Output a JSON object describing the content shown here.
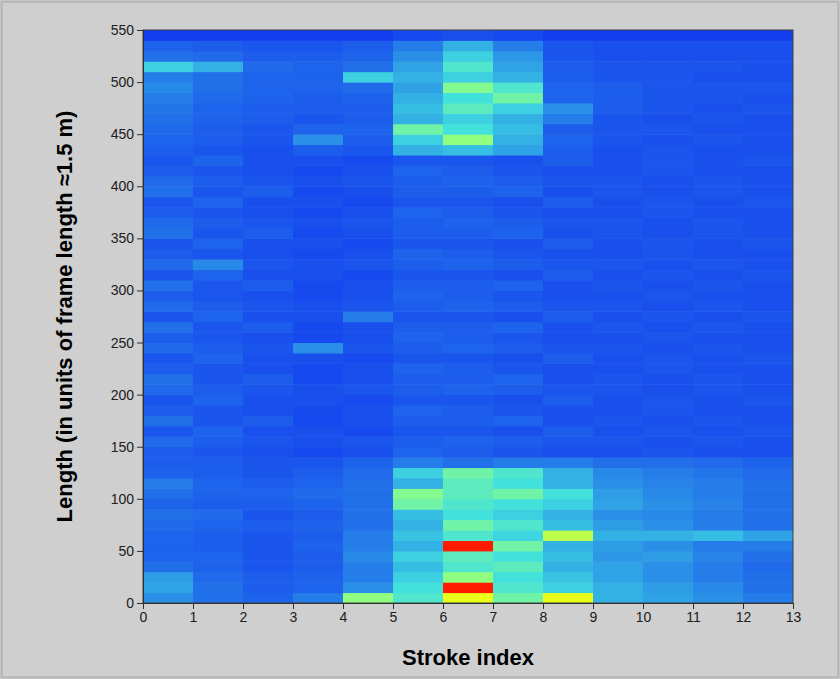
{
  "chart_data": {
    "type": "heatmap",
    "xlabel": "Stroke index",
    "ylabel": "Length (in units of frame length ≈1.5 m)",
    "xlim": [
      0,
      13
    ],
    "ylim": [
      0,
      550
    ],
    "xticks": [
      0,
      1,
      2,
      3,
      4,
      5,
      6,
      7,
      8,
      9,
      10,
      11,
      12,
      13
    ],
    "yticks": [
      0,
      50,
      100,
      150,
      200,
      250,
      300,
      350,
      400,
      450,
      500,
      550
    ],
    "x_edges": [
      0,
      1,
      2,
      3,
      4,
      5,
      6,
      7,
      8,
      9,
      10,
      11,
      12,
      13
    ],
    "y_edges": [
      0,
      10,
      20,
      30,
      40,
      50,
      60,
      70,
      80,
      90,
      100,
      110,
      120,
      130,
      140,
      150,
      160,
      170,
      180,
      190,
      200,
      210,
      220,
      230,
      240,
      250,
      260,
      270,
      280,
      290,
      300,
      310,
      320,
      330,
      340,
      350,
      360,
      370,
      380,
      390,
      400,
      410,
      420,
      430,
      440,
      450,
      460,
      470,
      480,
      490,
      500,
      510,
      520,
      530,
      540,
      550
    ],
    "zlim": [
      0,
      1
    ],
    "z": [
      [
        0.25,
        0.2,
        0.18,
        0.22,
        0.5,
        0.4,
        0.6,
        0.45,
        0.6,
        0.3,
        0.28,
        0.25,
        0.22
      ],
      [
        0.28,
        0.2,
        0.17,
        0.18,
        0.25,
        0.38,
        0.85,
        0.4,
        0.35,
        0.3,
        0.27,
        0.24,
        0.2
      ],
      [
        0.27,
        0.19,
        0.17,
        0.18,
        0.22,
        0.35,
        0.5,
        0.38,
        0.33,
        0.28,
        0.25,
        0.22,
        0.2
      ],
      [
        0.2,
        0.18,
        0.16,
        0.17,
        0.22,
        0.32,
        0.4,
        0.42,
        0.3,
        0.28,
        0.25,
        0.22,
        0.19
      ],
      [
        0.18,
        0.18,
        0.16,
        0.17,
        0.24,
        0.35,
        0.42,
        0.38,
        0.32,
        0.26,
        0.27,
        0.23,
        0.2
      ],
      [
        0.18,
        0.17,
        0.16,
        0.18,
        0.22,
        0.3,
        0.85,
        0.45,
        0.3,
        0.27,
        0.25,
        0.22,
        0.22
      ],
      [
        0.18,
        0.17,
        0.16,
        0.17,
        0.22,
        0.33,
        0.4,
        0.36,
        0.55,
        0.3,
        0.3,
        0.32,
        0.28
      ],
      [
        0.19,
        0.18,
        0.17,
        0.18,
        0.2,
        0.3,
        0.45,
        0.4,
        0.32,
        0.27,
        0.25,
        0.22,
        0.2
      ],
      [
        0.2,
        0.19,
        0.16,
        0.17,
        0.2,
        0.32,
        0.38,
        0.35,
        0.3,
        0.25,
        0.24,
        0.22,
        0.2
      ],
      [
        0.18,
        0.17,
        0.17,
        0.18,
        0.2,
        0.45,
        0.4,
        0.38,
        0.35,
        0.28,
        0.25,
        0.23,
        0.2
      ],
      [
        0.2,
        0.18,
        0.18,
        0.19,
        0.2,
        0.48,
        0.42,
        0.45,
        0.38,
        0.27,
        0.24,
        0.22,
        0.2
      ],
      [
        0.22,
        0.18,
        0.17,
        0.18,
        0.2,
        0.3,
        0.42,
        0.38,
        0.3,
        0.25,
        0.23,
        0.22,
        0.2
      ],
      [
        0.18,
        0.17,
        0.16,
        0.17,
        0.19,
        0.35,
        0.45,
        0.4,
        0.3,
        0.24,
        0.22,
        0.21,
        0.19
      ],
      [
        0.17,
        0.17,
        0.16,
        0.16,
        0.18,
        0.22,
        0.2,
        0.22,
        0.22,
        0.2,
        0.2,
        0.19,
        0.18
      ],
      [
        0.17,
        0.16,
        0.15,
        0.14,
        0.15,
        0.18,
        0.17,
        0.16,
        0.15,
        0.15,
        0.16,
        0.15,
        0.15
      ],
      [
        0.19,
        0.17,
        0.16,
        0.15,
        0.16,
        0.17,
        0.18,
        0.17,
        0.16,
        0.16,
        0.15,
        0.16,
        0.15
      ],
      [
        0.16,
        0.18,
        0.15,
        0.15,
        0.14,
        0.16,
        0.16,
        0.15,
        0.17,
        0.15,
        0.16,
        0.15,
        0.16
      ],
      [
        0.2,
        0.16,
        0.17,
        0.14,
        0.15,
        0.17,
        0.17,
        0.18,
        0.15,
        0.16,
        0.15,
        0.16,
        0.15
      ],
      [
        0.17,
        0.16,
        0.15,
        0.14,
        0.15,
        0.18,
        0.17,
        0.16,
        0.15,
        0.15,
        0.16,
        0.15,
        0.15
      ],
      [
        0.16,
        0.18,
        0.15,
        0.15,
        0.14,
        0.16,
        0.16,
        0.15,
        0.17,
        0.15,
        0.16,
        0.15,
        0.16
      ],
      [
        0.19,
        0.17,
        0.16,
        0.15,
        0.16,
        0.17,
        0.18,
        0.17,
        0.16,
        0.16,
        0.15,
        0.16,
        0.15
      ],
      [
        0.2,
        0.16,
        0.17,
        0.14,
        0.15,
        0.17,
        0.17,
        0.18,
        0.15,
        0.16,
        0.15,
        0.16,
        0.15
      ],
      [
        0.17,
        0.16,
        0.15,
        0.14,
        0.15,
        0.18,
        0.17,
        0.16,
        0.15,
        0.15,
        0.16,
        0.15,
        0.15
      ],
      [
        0.16,
        0.18,
        0.15,
        0.15,
        0.14,
        0.16,
        0.16,
        0.15,
        0.17,
        0.15,
        0.16,
        0.15,
        0.16
      ],
      [
        0.19,
        0.17,
        0.16,
        0.25,
        0.16,
        0.17,
        0.18,
        0.17,
        0.16,
        0.16,
        0.15,
        0.16,
        0.15
      ],
      [
        0.17,
        0.16,
        0.15,
        0.14,
        0.15,
        0.18,
        0.17,
        0.16,
        0.15,
        0.15,
        0.16,
        0.15,
        0.15
      ],
      [
        0.2,
        0.16,
        0.17,
        0.14,
        0.15,
        0.17,
        0.17,
        0.18,
        0.15,
        0.16,
        0.15,
        0.16,
        0.15
      ],
      [
        0.16,
        0.18,
        0.15,
        0.15,
        0.22,
        0.16,
        0.16,
        0.15,
        0.17,
        0.15,
        0.16,
        0.15,
        0.16
      ],
      [
        0.19,
        0.17,
        0.16,
        0.15,
        0.16,
        0.17,
        0.18,
        0.17,
        0.16,
        0.16,
        0.15,
        0.16,
        0.15
      ],
      [
        0.17,
        0.16,
        0.15,
        0.14,
        0.15,
        0.18,
        0.17,
        0.16,
        0.15,
        0.15,
        0.16,
        0.15,
        0.15
      ],
      [
        0.2,
        0.16,
        0.17,
        0.14,
        0.15,
        0.17,
        0.17,
        0.18,
        0.15,
        0.16,
        0.15,
        0.16,
        0.15
      ],
      [
        0.16,
        0.18,
        0.15,
        0.15,
        0.14,
        0.16,
        0.16,
        0.15,
        0.17,
        0.15,
        0.16,
        0.15,
        0.16
      ],
      [
        0.19,
        0.24,
        0.16,
        0.15,
        0.16,
        0.17,
        0.18,
        0.17,
        0.16,
        0.16,
        0.15,
        0.16,
        0.15
      ],
      [
        0.17,
        0.16,
        0.15,
        0.14,
        0.15,
        0.18,
        0.17,
        0.16,
        0.15,
        0.15,
        0.16,
        0.15,
        0.15
      ],
      [
        0.16,
        0.18,
        0.15,
        0.15,
        0.14,
        0.16,
        0.16,
        0.15,
        0.17,
        0.15,
        0.16,
        0.15,
        0.16
      ],
      [
        0.2,
        0.16,
        0.17,
        0.14,
        0.15,
        0.17,
        0.17,
        0.18,
        0.15,
        0.16,
        0.15,
        0.16,
        0.15
      ],
      [
        0.19,
        0.17,
        0.16,
        0.15,
        0.16,
        0.17,
        0.18,
        0.17,
        0.16,
        0.16,
        0.15,
        0.16,
        0.15
      ],
      [
        0.17,
        0.16,
        0.15,
        0.14,
        0.15,
        0.18,
        0.17,
        0.16,
        0.15,
        0.15,
        0.16,
        0.15,
        0.15
      ],
      [
        0.16,
        0.18,
        0.15,
        0.15,
        0.14,
        0.16,
        0.16,
        0.15,
        0.17,
        0.15,
        0.16,
        0.15,
        0.16
      ],
      [
        0.2,
        0.16,
        0.17,
        0.14,
        0.15,
        0.17,
        0.17,
        0.18,
        0.15,
        0.16,
        0.15,
        0.16,
        0.15
      ],
      [
        0.19,
        0.17,
        0.16,
        0.15,
        0.16,
        0.17,
        0.18,
        0.17,
        0.16,
        0.16,
        0.15,
        0.16,
        0.15
      ],
      [
        0.17,
        0.16,
        0.15,
        0.14,
        0.15,
        0.18,
        0.17,
        0.16,
        0.15,
        0.15,
        0.16,
        0.15,
        0.15
      ],
      [
        0.16,
        0.18,
        0.15,
        0.15,
        0.14,
        0.16,
        0.16,
        0.15,
        0.17,
        0.15,
        0.16,
        0.15,
        0.16
      ],
      [
        0.17,
        0.16,
        0.15,
        0.17,
        0.16,
        0.3,
        0.32,
        0.28,
        0.17,
        0.15,
        0.16,
        0.15,
        0.15
      ],
      [
        0.18,
        0.17,
        0.16,
        0.25,
        0.17,
        0.35,
        0.5,
        0.3,
        0.18,
        0.16,
        0.15,
        0.16,
        0.15
      ],
      [
        0.19,
        0.17,
        0.16,
        0.18,
        0.18,
        0.45,
        0.38,
        0.32,
        0.17,
        0.16,
        0.16,
        0.15,
        0.15
      ],
      [
        0.2,
        0.18,
        0.17,
        0.16,
        0.17,
        0.3,
        0.35,
        0.3,
        0.22,
        0.16,
        0.15,
        0.16,
        0.15
      ],
      [
        0.21,
        0.18,
        0.17,
        0.17,
        0.17,
        0.32,
        0.42,
        0.35,
        0.25,
        0.17,
        0.16,
        0.15,
        0.16
      ],
      [
        0.22,
        0.19,
        0.18,
        0.17,
        0.18,
        0.3,
        0.38,
        0.45,
        0.18,
        0.17,
        0.16,
        0.16,
        0.15
      ],
      [
        0.24,
        0.2,
        0.18,
        0.18,
        0.19,
        0.28,
        0.48,
        0.4,
        0.18,
        0.17,
        0.16,
        0.16,
        0.16
      ],
      [
        0.22,
        0.2,
        0.18,
        0.18,
        0.35,
        0.3,
        0.35,
        0.3,
        0.17,
        0.16,
        0.16,
        0.15,
        0.15
      ],
      [
        0.35,
        0.3,
        0.19,
        0.18,
        0.2,
        0.28,
        0.4,
        0.28,
        0.17,
        0.16,
        0.16,
        0.16,
        0.15
      ],
      [
        0.2,
        0.19,
        0.17,
        0.17,
        0.18,
        0.25,
        0.35,
        0.26,
        0.16,
        0.15,
        0.15,
        0.15,
        0.15
      ],
      [
        0.18,
        0.17,
        0.16,
        0.16,
        0.17,
        0.22,
        0.3,
        0.22,
        0.16,
        0.15,
        0.15,
        0.15,
        0.15
      ],
      [
        0.12,
        0.12,
        0.12,
        0.12,
        0.12,
        0.14,
        0.15,
        0.14,
        0.12,
        0.12,
        0.12,
        0.12,
        0.12
      ]
    ]
  }
}
